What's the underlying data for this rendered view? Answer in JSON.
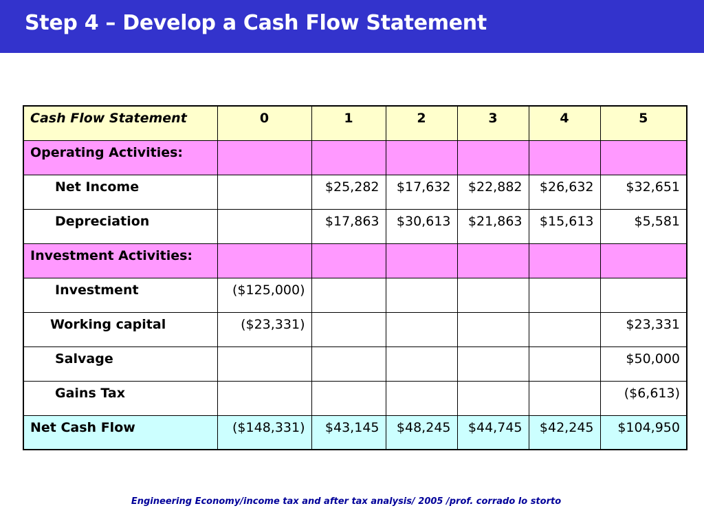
{
  "slide": {
    "title": "Step 4 – Develop a Cash Flow Statement",
    "footer": "Engineering Economy/income tax and after tax analysis/ 2005 /prof. corrado lo storto"
  },
  "colors": {
    "title_bar": "#3333cc",
    "header_row": "#ffffcc",
    "section_row": "#ff99ff",
    "total_row": "#ccffff",
    "footer_text": "#000099"
  },
  "table": {
    "header": {
      "label": "Cash Flow Statement",
      "years": [
        "0",
        "1",
        "2",
        "3",
        "4",
        "5"
      ]
    },
    "rows": [
      {
        "label": "Operating Activities:",
        "values": [
          "",
          "",
          "",
          "",
          "",
          ""
        ]
      },
      {
        "label": "Net Income",
        "values": [
          "",
          "$25,282",
          "$17,632",
          "$22,882",
          "$26,632",
          "$32,651"
        ]
      },
      {
        "label": "Depreciation",
        "values": [
          "",
          "$17,863",
          "$30,613",
          "$21,863",
          "$15,613",
          "$5,581"
        ]
      },
      {
        "label": "Investment Activities:",
        "values": [
          "",
          "",
          "",
          "",
          "",
          ""
        ]
      },
      {
        "label": "Investment",
        "values": [
          "($125,000)",
          "",
          "",
          "",
          "",
          ""
        ]
      },
      {
        "label": "Working capital",
        "values": [
          "($23,331)",
          "",
          "",
          "",
          "",
          "$23,331"
        ]
      },
      {
        "label": "Salvage",
        "values": [
          "",
          "",
          "",
          "",
          "",
          "$50,000"
        ]
      },
      {
        "label": "Gains Tax",
        "values": [
          "",
          "",
          "",
          "",
          "",
          "($6,613)"
        ]
      },
      {
        "label": "Net Cash Flow",
        "values": [
          "($148,331)",
          "$43,145",
          "$48,245",
          "$44,745",
          "$42,245",
          "$104,950"
        ]
      }
    ]
  }
}
